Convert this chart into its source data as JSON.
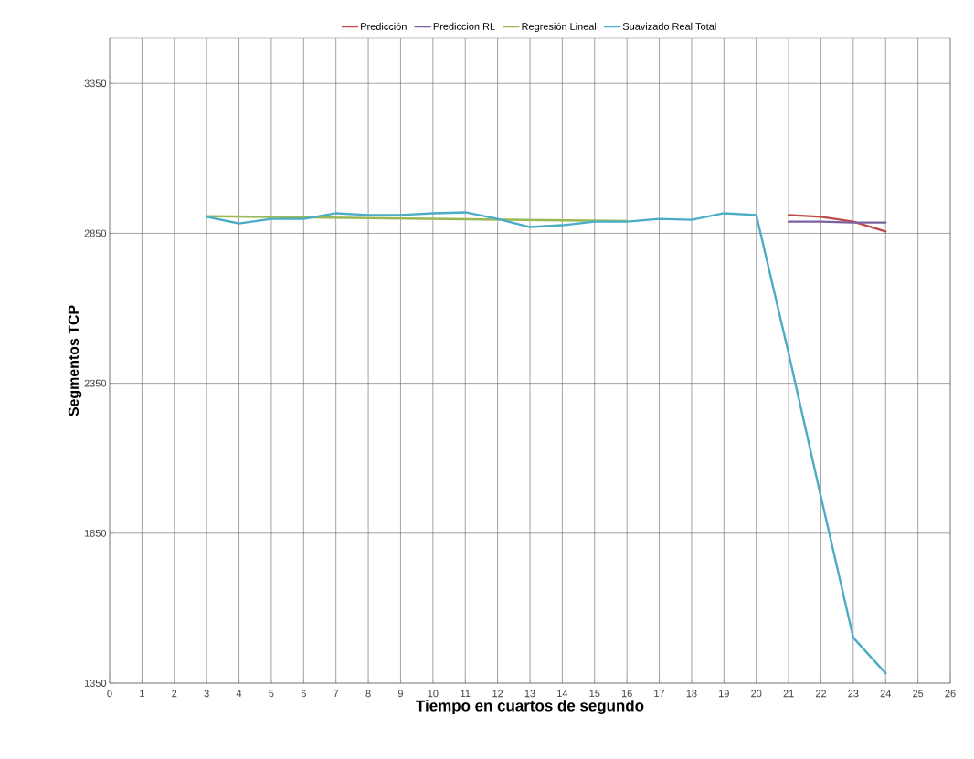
{
  "chart_data": {
    "type": "line",
    "xlabel": "Tiempo en cuartos de segundo",
    "ylabel": "Segmentos TCP",
    "xlim": [
      0,
      26
    ],
    "xticks": [
      0,
      1,
      2,
      3,
      4,
      5,
      6,
      7,
      8,
      9,
      10,
      11,
      12,
      13,
      14,
      15,
      16,
      17,
      18,
      19,
      20,
      21,
      22,
      23,
      24,
      25,
      26
    ],
    "ylim": [
      1350,
      3500
    ],
    "yticks": [
      1350,
      1850,
      2350,
      2850,
      3350
    ],
    "grid": true,
    "legend": "top",
    "marker": "none",
    "line_style": "solid",
    "series": [
      {
        "name": "Predicción",
        "color": "#be4b48",
        "x": [
          21,
          22,
          23,
          24
        ],
        "values": [
          2911,
          2905,
          2889,
          2856
        ]
      },
      {
        "name": "Prediccion RL",
        "color": "#7d60a0",
        "x": [
          21,
          22,
          23,
          24
        ],
        "values": [
          2889,
          2889,
          2886,
          2886
        ]
      },
      {
        "name": "Regresión Lineal",
        "color": "#98b954",
        "x": [
          3,
          16
        ],
        "values": [
          2907,
          2891
        ]
      },
      {
        "name": "Suavizado Real Total",
        "color": "#4bacc6",
        "x": [
          3,
          4,
          5,
          6,
          7,
          8,
          9,
          10,
          11,
          12,
          13,
          14,
          15,
          16,
          17,
          18,
          19,
          20,
          21,
          22,
          23,
          24
        ],
        "values": [
          2905,
          2883,
          2898,
          2898,
          2917,
          2911,
          2911,
          2917,
          2920,
          2898,
          2871,
          2877,
          2889,
          2889,
          2898,
          2895,
          2917,
          2911,
          2450,
          1971,
          1502,
          1383
        ]
      }
    ]
  }
}
